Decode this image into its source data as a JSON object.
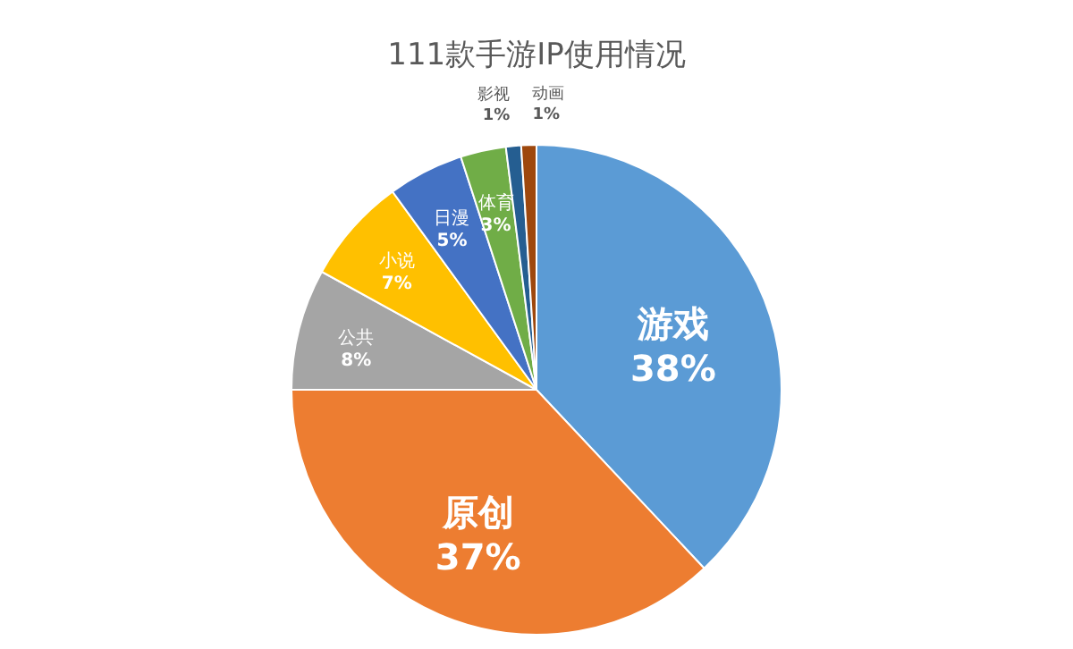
{
  "chart_data": {
    "type": "pie",
    "title": "111款手游IP使用情况",
    "categories": [
      "游戏",
      "原创",
      "公共",
      "小说",
      "日漫",
      "体育",
      "影视",
      "动画"
    ],
    "values": [
      38,
      37,
      8,
      7,
      5,
      3,
      1,
      1
    ],
    "value_labels": [
      "38%",
      "37%",
      "8%",
      "7%",
      "5%",
      "3%",
      "1%",
      "1%"
    ],
    "colors": [
      "#5b9bd5",
      "#ed7d31",
      "#a5a5a5",
      "#ffc000",
      "#4472c4",
      "#70ad47",
      "#255e91",
      "#9e480e"
    ]
  }
}
